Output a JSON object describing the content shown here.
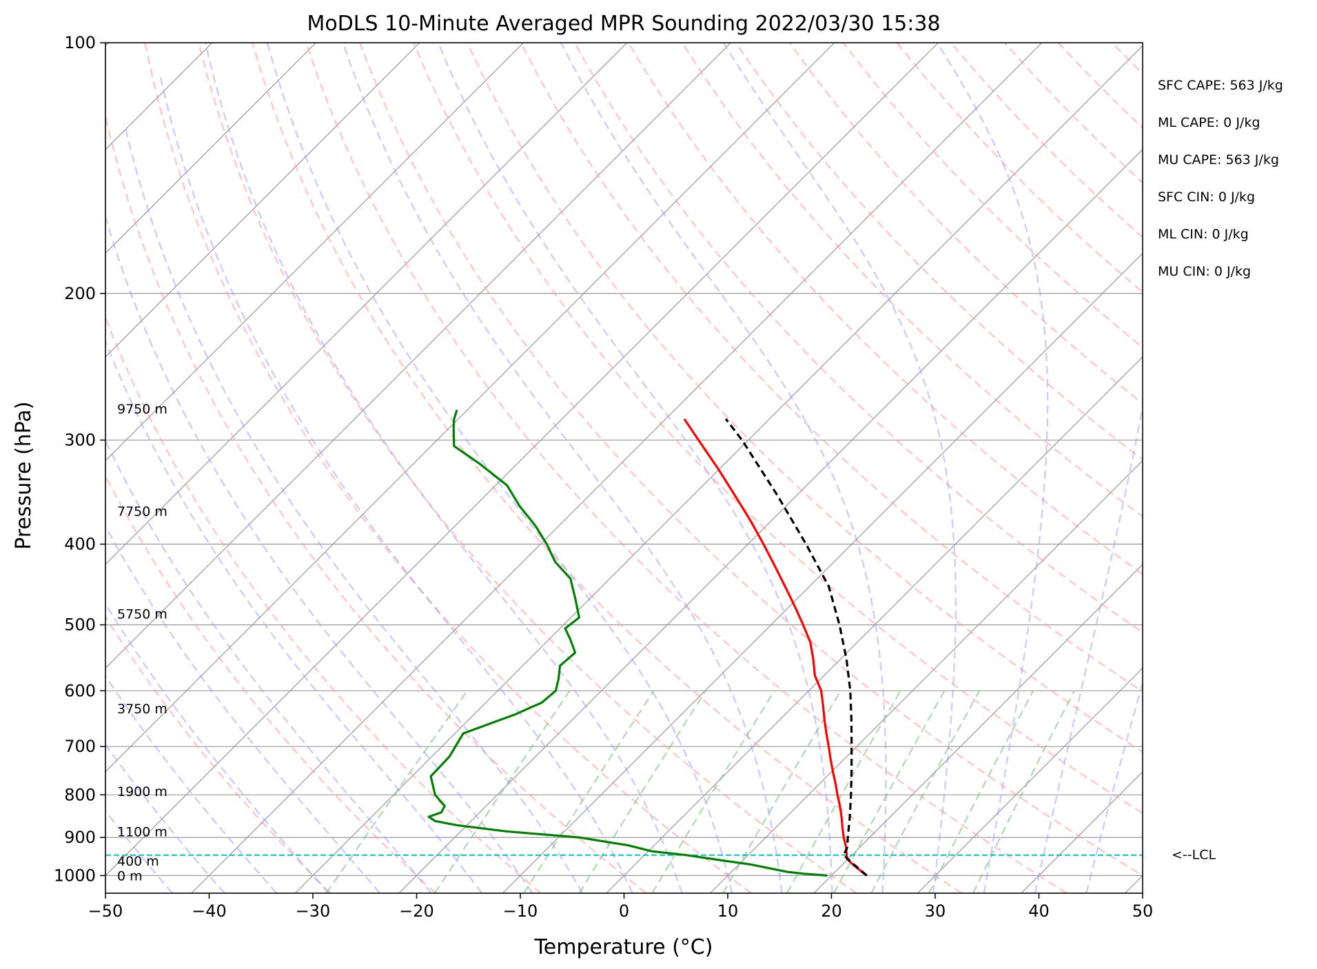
{
  "chart_data": {
    "type": "line",
    "title": "MoDLS 10-Minute Averaged MPR Sounding 2022/03/30 15:38",
    "xlabel": "Temperature (°C)",
    "ylabel": "Pressure (hPa)",
    "xlim": [
      -50,
      50
    ],
    "ylim": [
      1050,
      100
    ],
    "y_scale": "log",
    "skew": true,
    "x_ticks": [
      "−50",
      "−40",
      "−30",
      "−20",
      "−10",
      "0",
      "10",
      "20",
      "30",
      "40",
      "50"
    ],
    "y_ticks": [
      "100",
      "200",
      "300",
      "400",
      "500",
      "600",
      "700",
      "800",
      "900",
      "1000"
    ],
    "grid": true,
    "colors": {
      "temperature": "#ff0000",
      "dewpoint": "#008000",
      "parcel": "#000000",
      "dry_adiabats": "#ff9999",
      "moist_adiabats": "#9999ff",
      "mixing_ratio": "#88c088",
      "lcl_line": "#00bfbf",
      "isotherms": "#999999"
    },
    "series": [
      {
        "key": "temperature",
        "p": [
          1000,
          985,
          970,
          955,
          940,
          925,
          900,
          875,
          850,
          825,
          800,
          775,
          750,
          725,
          700,
          675,
          650,
          625,
          600,
          575,
          550,
          525,
          500,
          475,
          450,
          425,
          400,
          375,
          350,
          325,
          300,
          283
        ],
        "t": [
          23.4,
          22.2,
          21.0,
          19.9,
          19.3,
          18.7,
          17.5,
          16.4,
          15.3,
          14.1,
          12.8,
          11.5,
          10.1,
          8.7,
          7.3,
          5.8,
          4.3,
          2.8,
          1.2,
          -0.9,
          -2.6,
          -4.5,
          -6.9,
          -9.5,
          -12.3,
          -15.3,
          -18.5,
          -22.0,
          -25.9,
          -30.1,
          -34.8,
          -38.2
        ]
      },
      {
        "key": "dewpoint",
        "p": [
          1000,
          995,
          990,
          980,
          970,
          960,
          945,
          935,
          920,
          900,
          885,
          870,
          860,
          850,
          840,
          825,
          800,
          760,
          720,
          675,
          640,
          620,
          600,
          580,
          560,
          540,
          520,
          505,
          490,
          465,
          440,
          420,
          400,
          380,
          360,
          340,
          320,
          305,
          290,
          283,
          276
        ],
        "t": [
          19.6,
          17.2,
          15.4,
          13.3,
          11.2,
          8.3,
          4.0,
          0.3,
          -2.5,
          -8.0,
          -15.6,
          -21.0,
          -23.5,
          -24.5,
          -23.7,
          -24.0,
          -26.0,
          -28.2,
          -28.3,
          -29.2,
          -26.0,
          -24.6,
          -24.4,
          -25.3,
          -26.4,
          -26.2,
          -28.0,
          -29.5,
          -29.2,
          -31.4,
          -33.8,
          -36.9,
          -39.4,
          -42.3,
          -45.7,
          -48.9,
          -53.7,
          -57.8,
          -59.6,
          -60.4,
          -61.0
        ]
      },
      {
        "key": "parcel",
        "p": [
          1000,
          970,
          945,
          925,
          900,
          850,
          800,
          750,
          700,
          650,
          600,
          550,
          500,
          450,
          400,
          350,
          300,
          283
        ],
        "t": [
          23.4,
          21.1,
          19.2,
          18.8,
          17.9,
          16.1,
          14.1,
          11.9,
          9.5,
          6.9,
          4.0,
          0.6,
          -3.4,
          -8.1,
          -14.4,
          -21.8,
          -30.6,
          -34.2
        ]
      }
    ],
    "lcl": {
      "p": 945,
      "label": "<--LCL"
    },
    "height_labels": [
      {
        "p": 1000,
        "label": "0 m"
      },
      {
        "p": 960,
        "label": "400 m"
      },
      {
        "p": 885,
        "label": "1100 m"
      },
      {
        "p": 792,
        "label": "1900 m"
      },
      {
        "p": 630,
        "label": "3750 m"
      },
      {
        "p": 485,
        "label": "5750 m"
      },
      {
        "p": 365,
        "label": "7750 m"
      },
      {
        "p": 275,
        "label": "9750 m"
      }
    ],
    "indices": [
      "SFC CAPE: 563 J/kg",
      "ML CAPE: 0 J/kg",
      "MU CAPE: 563 J/kg",
      "SFC CIN: 0 J/kg",
      "ML CIN: 0 J/kg",
      "MU CIN: 0 J/kg"
    ]
  }
}
